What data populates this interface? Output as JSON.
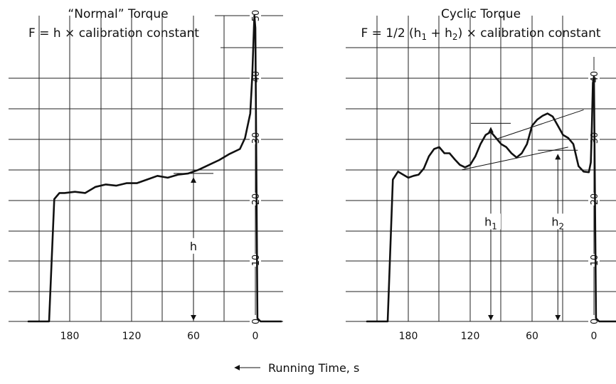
{
  "chart_data": [
    {
      "type": "line",
      "title": "“Normal” Torque",
      "subtitle": "F = h × calibration constant",
      "x_axis": {
        "ticks": [
          180,
          120,
          60,
          0
        ],
        "reversed": true,
        "range": [
          240,
          -20
        ]
      },
      "y_axis": {
        "ticks": [
          0,
          10,
          20,
          30,
          40,
          50
        ],
        "range": [
          0,
          50
        ],
        "position": "right"
      },
      "grid": true,
      "series": [
        {
          "x": [
            220,
            210,
            205,
            200,
            195,
            190,
            185,
            175,
            165,
            155,
            145,
            135,
            125,
            115,
            105,
            95,
            85,
            75,
            65,
            55,
            45,
            35,
            25,
            15,
            10,
            5,
            3,
            2,
            1,
            0,
            -2,
            -5,
            -15,
            -25
          ],
          "y": [
            0,
            0,
            0,
            0,
            20,
            21,
            21,
            21.2,
            21,
            22,
            22.4,
            22.2,
            22.6,
            22.6,
            23.2,
            23.8,
            23.5,
            24,
            24.2,
            24.8,
            25.6,
            26.4,
            27.4,
            28.2,
            30,
            34,
            40,
            45,
            50,
            48,
            0.5,
            0,
            0,
            0
          ]
        }
      ],
      "annotations": [
        {
          "label": "h",
          "x": 60,
          "y_from": 0,
          "y_to": 24.2
        }
      ]
    },
    {
      "type": "line",
      "title": "Cyclic Torque",
      "subtitle_parts": [
        "F = 1/2 (h",
        "1",
        " + h",
        "2",
        ") × calibration constant"
      ],
      "x_axis": {
        "ticks": [
          180,
          120,
          60,
          0
        ],
        "reversed": true,
        "range": [
          240,
          -20
        ]
      },
      "y_axis": {
        "ticks": [
          0,
          10,
          20,
          30,
          40
        ],
        "range": [
          0,
          50
        ],
        "position": "right"
      },
      "grid": true,
      "series": [
        {
          "x": [
            220,
            210,
            205,
            200,
            195,
            190,
            185,
            180,
            175,
            170,
            165,
            160,
            155,
            150,
            145,
            140,
            135,
            130,
            125,
            120,
            115,
            110,
            105,
            100,
            95,
            90,
            85,
            80,
            75,
            70,
            65,
            60,
            55,
            50,
            45,
            40,
            35,
            30,
            25,
            20,
            15,
            10,
            5,
            3,
            2,
            1,
            0,
            -2,
            -5,
            -15,
            -25
          ],
          "y": [
            0,
            0,
            0,
            0,
            23.2,
            24.5,
            24,
            23.5,
            23.8,
            24,
            25,
            27,
            28.2,
            28.5,
            27.5,
            27.5,
            26.5,
            25.6,
            25.2,
            25.6,
            27,
            29,
            30.5,
            31,
            30,
            29,
            28.5,
            27.5,
            26.8,
            27.5,
            29,
            32,
            33,
            33.6,
            34,
            33.5,
            32,
            30.5,
            30,
            29,
            25.4,
            24.5,
            24.4,
            26,
            32,
            39,
            40,
            0.5,
            0,
            0,
            0
          ]
        }
      ],
      "annotations": [
        {
          "label": "h1",
          "label_main": "h",
          "label_sub": "1",
          "x": 100,
          "y_from": 0,
          "y_to": 32.4
        },
        {
          "label": "h2",
          "label_main": "h",
          "label_sub": "2",
          "x": 35,
          "y_from": 0,
          "y_to": 28
        }
      ]
    }
  ],
  "xlabel": "Running Time, s"
}
